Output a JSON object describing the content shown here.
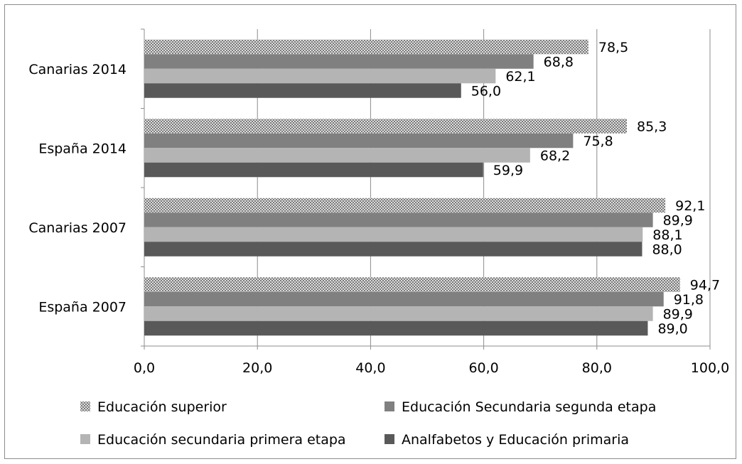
{
  "chart_data": {
    "type": "bar",
    "orientation": "horizontal",
    "categories": [
      "Canarias 2014",
      "España 2014",
      "Canarias 2007",
      "España 2007"
    ],
    "series": [
      {
        "name": "Educación superior",
        "values": [
          78.5,
          85.3,
          92.1,
          94.7
        ],
        "labels": [
          "78,5",
          "85,3",
          "92,1",
          "94,7"
        ],
        "color": "#bcbcbc",
        "pattern": "crosshatch"
      },
      {
        "name": "Educación Secundaria segunda etapa",
        "values": [
          68.8,
          75.8,
          89.9,
          91.8
        ],
        "labels": [
          "68,8",
          "75,8",
          "89,9",
          "91,8"
        ],
        "color": "#808080"
      },
      {
        "name": "Educación secundaria primera etapa",
        "values": [
          62.1,
          68.2,
          88.1,
          89.9
        ],
        "labels": [
          "62,1",
          "68,2",
          "88,1",
          "89,9"
        ],
        "color": "#b4b4b4"
      },
      {
        "name": "Analfabetos y Educación primaria",
        "values": [
          56.0,
          59.9,
          88.0,
          89.0
        ],
        "labels": [
          "56,0",
          "59,9",
          "88,0",
          "89,0"
        ],
        "color": "#595959"
      }
    ],
    "xlim": [
      0,
      100
    ],
    "xticks": [
      0,
      20,
      40,
      60,
      80,
      100
    ],
    "xtick_labels": [
      "0,0",
      "20,0",
      "40,0",
      "60,0",
      "80,0",
      "100,0"
    ],
    "grid": true,
    "legend_position": "bottom"
  }
}
